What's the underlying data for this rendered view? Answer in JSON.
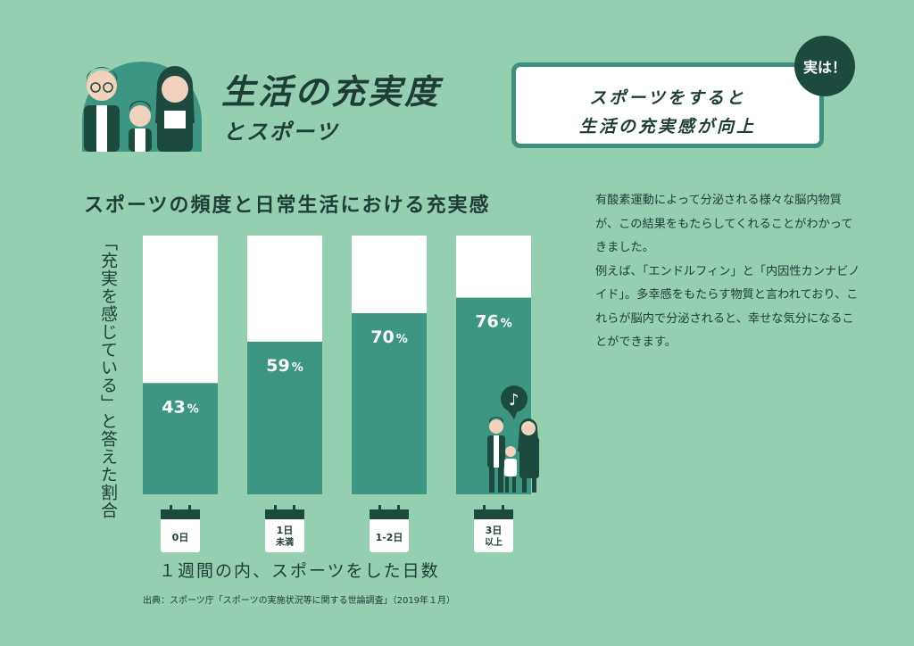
{
  "header": {
    "title": "生活の充実度",
    "subtitle": "とスポーツ"
  },
  "callout": {
    "badge": "実は！",
    "line1": "スポーツをすると",
    "line2": "生活の充実感が向上"
  },
  "body_text": {
    "paragraph1": "有酸素運動によって分泌される様々な脳内物質が、この結果をもたらしてくれることがわかってきました。",
    "paragraph2": "例えば、「エンドルフィン」と「内因性カンナビノイド」。多幸感をもたらす物質と言われており、これらが脳内で分泌されると、幸せな気分になることができます。"
  },
  "colors": {
    "background": "#94cfb2",
    "bar_fill": "#3d9682",
    "bar_empty": "#ffffff",
    "dark": "#1d4a3f"
  },
  "chart_data": {
    "type": "bar",
    "title": "スポーツの頻度と日常生活における充実感",
    "ylabel": "「充実を感じている」と答えた割合",
    "xlabel": "１週間の内、スポーツをした日数",
    "categories": [
      [
        "0日"
      ],
      [
        "1日",
        "未満"
      ],
      [
        "1-2日"
      ],
      [
        "3日",
        "以上"
      ]
    ],
    "values": [
      43,
      59,
      70,
      76
    ],
    "value_labels": [
      "43%",
      "59%",
      "70%",
      "76%"
    ],
    "ylim": [
      0,
      100
    ],
    "grid": false,
    "source": "出典：スポーツ庁「スポーツの実施状況等に関する世論調査」（2019年１月）"
  }
}
